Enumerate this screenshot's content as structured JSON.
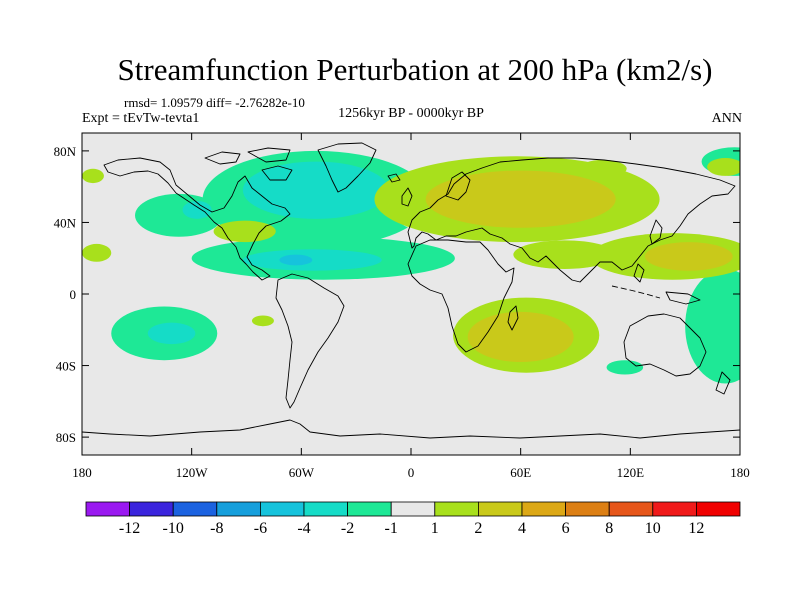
{
  "title": "Streamfunction Perturbation at 200 hPa (km2/s)",
  "stats": "rmsd= 1.09579 diff= -2.76282e-10",
  "left_label": "Expt = tEvTw-tevta1",
  "center_label": "1256kyr BP - 0000kyr BP",
  "right_label": "ANN",
  "chart_data": {
    "type": "heatmap",
    "projection": "cylindrical equidistant",
    "title": "Streamfunction Perturbation at 200 hPa (km2/s)",
    "xlim": [
      -180,
      180
    ],
    "ylim": [
      -90,
      90
    ],
    "x_ticks": [
      {
        "value": -180,
        "label": "180"
      },
      {
        "value": -120,
        "label": "120W"
      },
      {
        "value": -60,
        "label": "60W"
      },
      {
        "value": 0,
        "label": "0"
      },
      {
        "value": 60,
        "label": "60E"
      },
      {
        "value": 120,
        "label": "120E"
      },
      {
        "value": 180,
        "label": "180"
      }
    ],
    "y_ticks": [
      {
        "value": 80,
        "label": "80N"
      },
      {
        "value": 40,
        "label": "40N"
      },
      {
        "value": 0,
        "label": "0"
      },
      {
        "value": -40,
        "label": "40S"
      },
      {
        "value": -80,
        "label": "80S"
      }
    ],
    "background_color": "#e8e8e8",
    "colorbar": {
      "labels": [
        "-12",
        "-10",
        "-8",
        "-6",
        "-4",
        "-2",
        "-1",
        "1",
        "2",
        "4",
        "6",
        "8",
        "10",
        "12"
      ],
      "colors": [
        "#9a19f0",
        "#3b24dd",
        "#1b62e0",
        "#169fdc",
        "#16c3dc",
        "#15dcc7",
        "#1ee896",
        "#e8e8e8",
        "#a8e01c",
        "#c9c91a",
        "#dca816",
        "#dc7f14",
        "#e6561a",
        "#f01a1a",
        "#f00000"
      ]
    },
    "features": [
      {
        "level": -2,
        "lon": -52,
        "lat": 53,
        "rlon": 62,
        "rlat": 27
      },
      {
        "level": -4,
        "lon": -52,
        "lat": 58,
        "rlon": 40,
        "rlat": 16
      },
      {
        "level": -2,
        "lon": -48,
        "lat": 20,
        "rlon": 72,
        "rlat": 12
      },
      {
        "level": -4,
        "lon": -54,
        "lat": 19,
        "rlon": 38,
        "rlat": 6
      },
      {
        "level": -6,
        "lon": -63,
        "lat": 19,
        "rlon": 9,
        "rlat": 3
      },
      {
        "level": -2,
        "lon": -127,
        "lat": 44,
        "rlon": 24,
        "rlat": 12
      },
      {
        "level": -4,
        "lon": -117,
        "lat": 47,
        "rlon": 8,
        "rlat": 5
      },
      {
        "level": -2,
        "lon": -135,
        "lat": -22,
        "rlon": 29,
        "rlat": 15
      },
      {
        "level": -4,
        "lon": -131,
        "lat": -22,
        "rlon": 13,
        "rlat": 6
      },
      {
        "level": -2,
        "lon": 172,
        "lat": -18,
        "rlon": 22,
        "rlat": 32
      },
      {
        "level": -2,
        "lon": 177,
        "lat": 74,
        "rlon": 18,
        "rlat": 8
      },
      {
        "level": -2,
        "lon": 117,
        "lat": -41,
        "rlon": 10,
        "rlat": 4
      },
      {
        "level": 1,
        "lon": 5,
        "lat": 43,
        "rlon": 12,
        "rlat": 7
      },
      {
        "level": 2,
        "lon": 58,
        "lat": 53,
        "rlon": 78,
        "rlat": 24
      },
      {
        "level": 4,
        "lon": 60,
        "lat": 53,
        "rlon": 52,
        "rlat": 16
      },
      {
        "level": 2,
        "lon": 143,
        "lat": 21,
        "rlon": 45,
        "rlat": 13
      },
      {
        "level": 4,
        "lon": 152,
        "lat": 21,
        "rlon": 24,
        "rlat": 8
      },
      {
        "level": 2,
        "lon": 84,
        "lat": 22,
        "rlon": 28,
        "rlat": 8
      },
      {
        "level": 2,
        "lon": 63,
        "lat": -23,
        "rlon": 40,
        "rlat": 21
      },
      {
        "level": 4,
        "lon": 60,
        "lat": -24,
        "rlon": 29,
        "rlat": 14
      },
      {
        "level": 2,
        "lon": -91,
        "lat": 35,
        "rlon": 17,
        "rlat": 6
      },
      {
        "level": 2,
        "lon": -172,
        "lat": 23,
        "rlon": 8,
        "rlat": 5
      },
      {
        "level": 2,
        "lon": -174,
        "lat": 66,
        "rlon": 6,
        "rlat": 4
      },
      {
        "level": 2,
        "lon": -81,
        "lat": -15,
        "rlon": 6,
        "rlat": 3
      },
      {
        "level": 2,
        "lon": 172,
        "lat": 71,
        "rlon": 10,
        "rlat": 5
      },
      {
        "level": 2,
        "lon": 105,
        "lat": 70,
        "rlon": 13,
        "rlat": 5
      }
    ]
  }
}
